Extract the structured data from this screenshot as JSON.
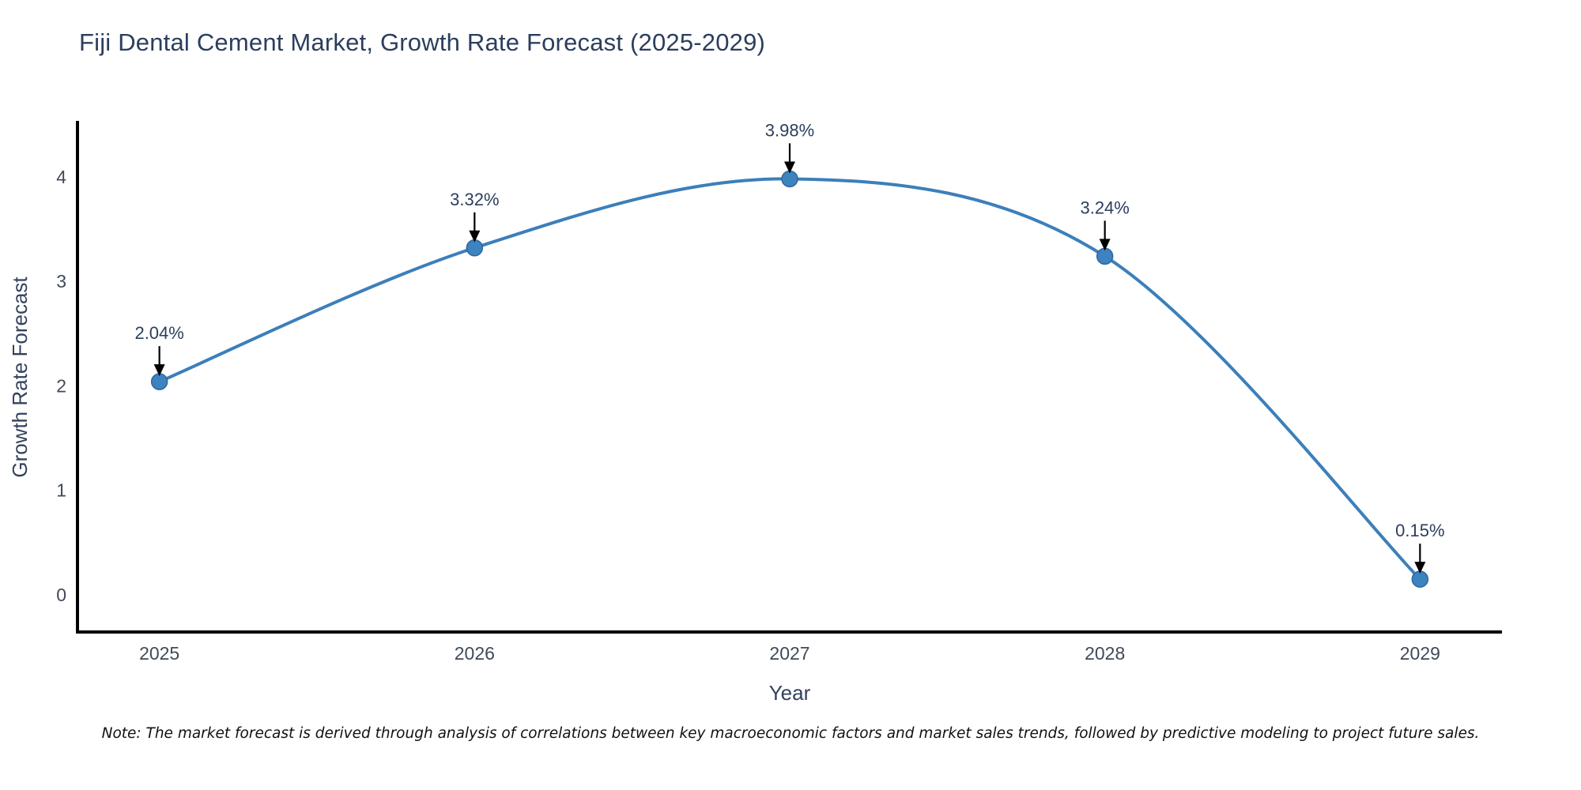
{
  "chart_data": {
    "type": "line",
    "title": "Fiji Dental Cement Market, Growth Rate Forecast (2025-2029)",
    "xlabel": "Year",
    "ylabel": "Growth Rate Forecast",
    "x": [
      2025,
      2026,
      2027,
      2028,
      2029
    ],
    "y": [
      2.04,
      3.32,
      3.98,
      3.24,
      0.15
    ],
    "point_labels": [
      "2.04%",
      "3.32%",
      "3.98%",
      "3.24%",
      "0.15%"
    ],
    "xtick_labels": [
      "2025",
      "2026",
      "2027",
      "2028",
      "2029"
    ],
    "xtick_values": [
      2025,
      2026,
      2027,
      2028,
      2029
    ],
    "ytick_labels": [
      "0",
      "1",
      "2",
      "3",
      "4"
    ],
    "ytick_values": [
      0,
      1,
      2,
      3,
      4
    ],
    "xlim": [
      2024.74,
      2029.26
    ],
    "ylim": [
      -0.355,
      4.52
    ],
    "grid": false,
    "legend_position": "none",
    "line_interpolation": "spline",
    "colors": {
      "line": "#3c7fba",
      "marker_fill": "#3c83c0",
      "marker_edge": "#2f689a",
      "axis": "#000000",
      "title_text": "#2c3e5d",
      "axis_title_text": "#33415c",
      "tick_text": "#404a59",
      "annotation_text": "#2c3e5d",
      "annotation_arrow": "#000000",
      "background": "#ffffff"
    },
    "note": "Note: The market forecast is derived through analysis of correlations between key macroeconomic factors and market sales trends, followed by predictive modeling to project future sales."
  }
}
